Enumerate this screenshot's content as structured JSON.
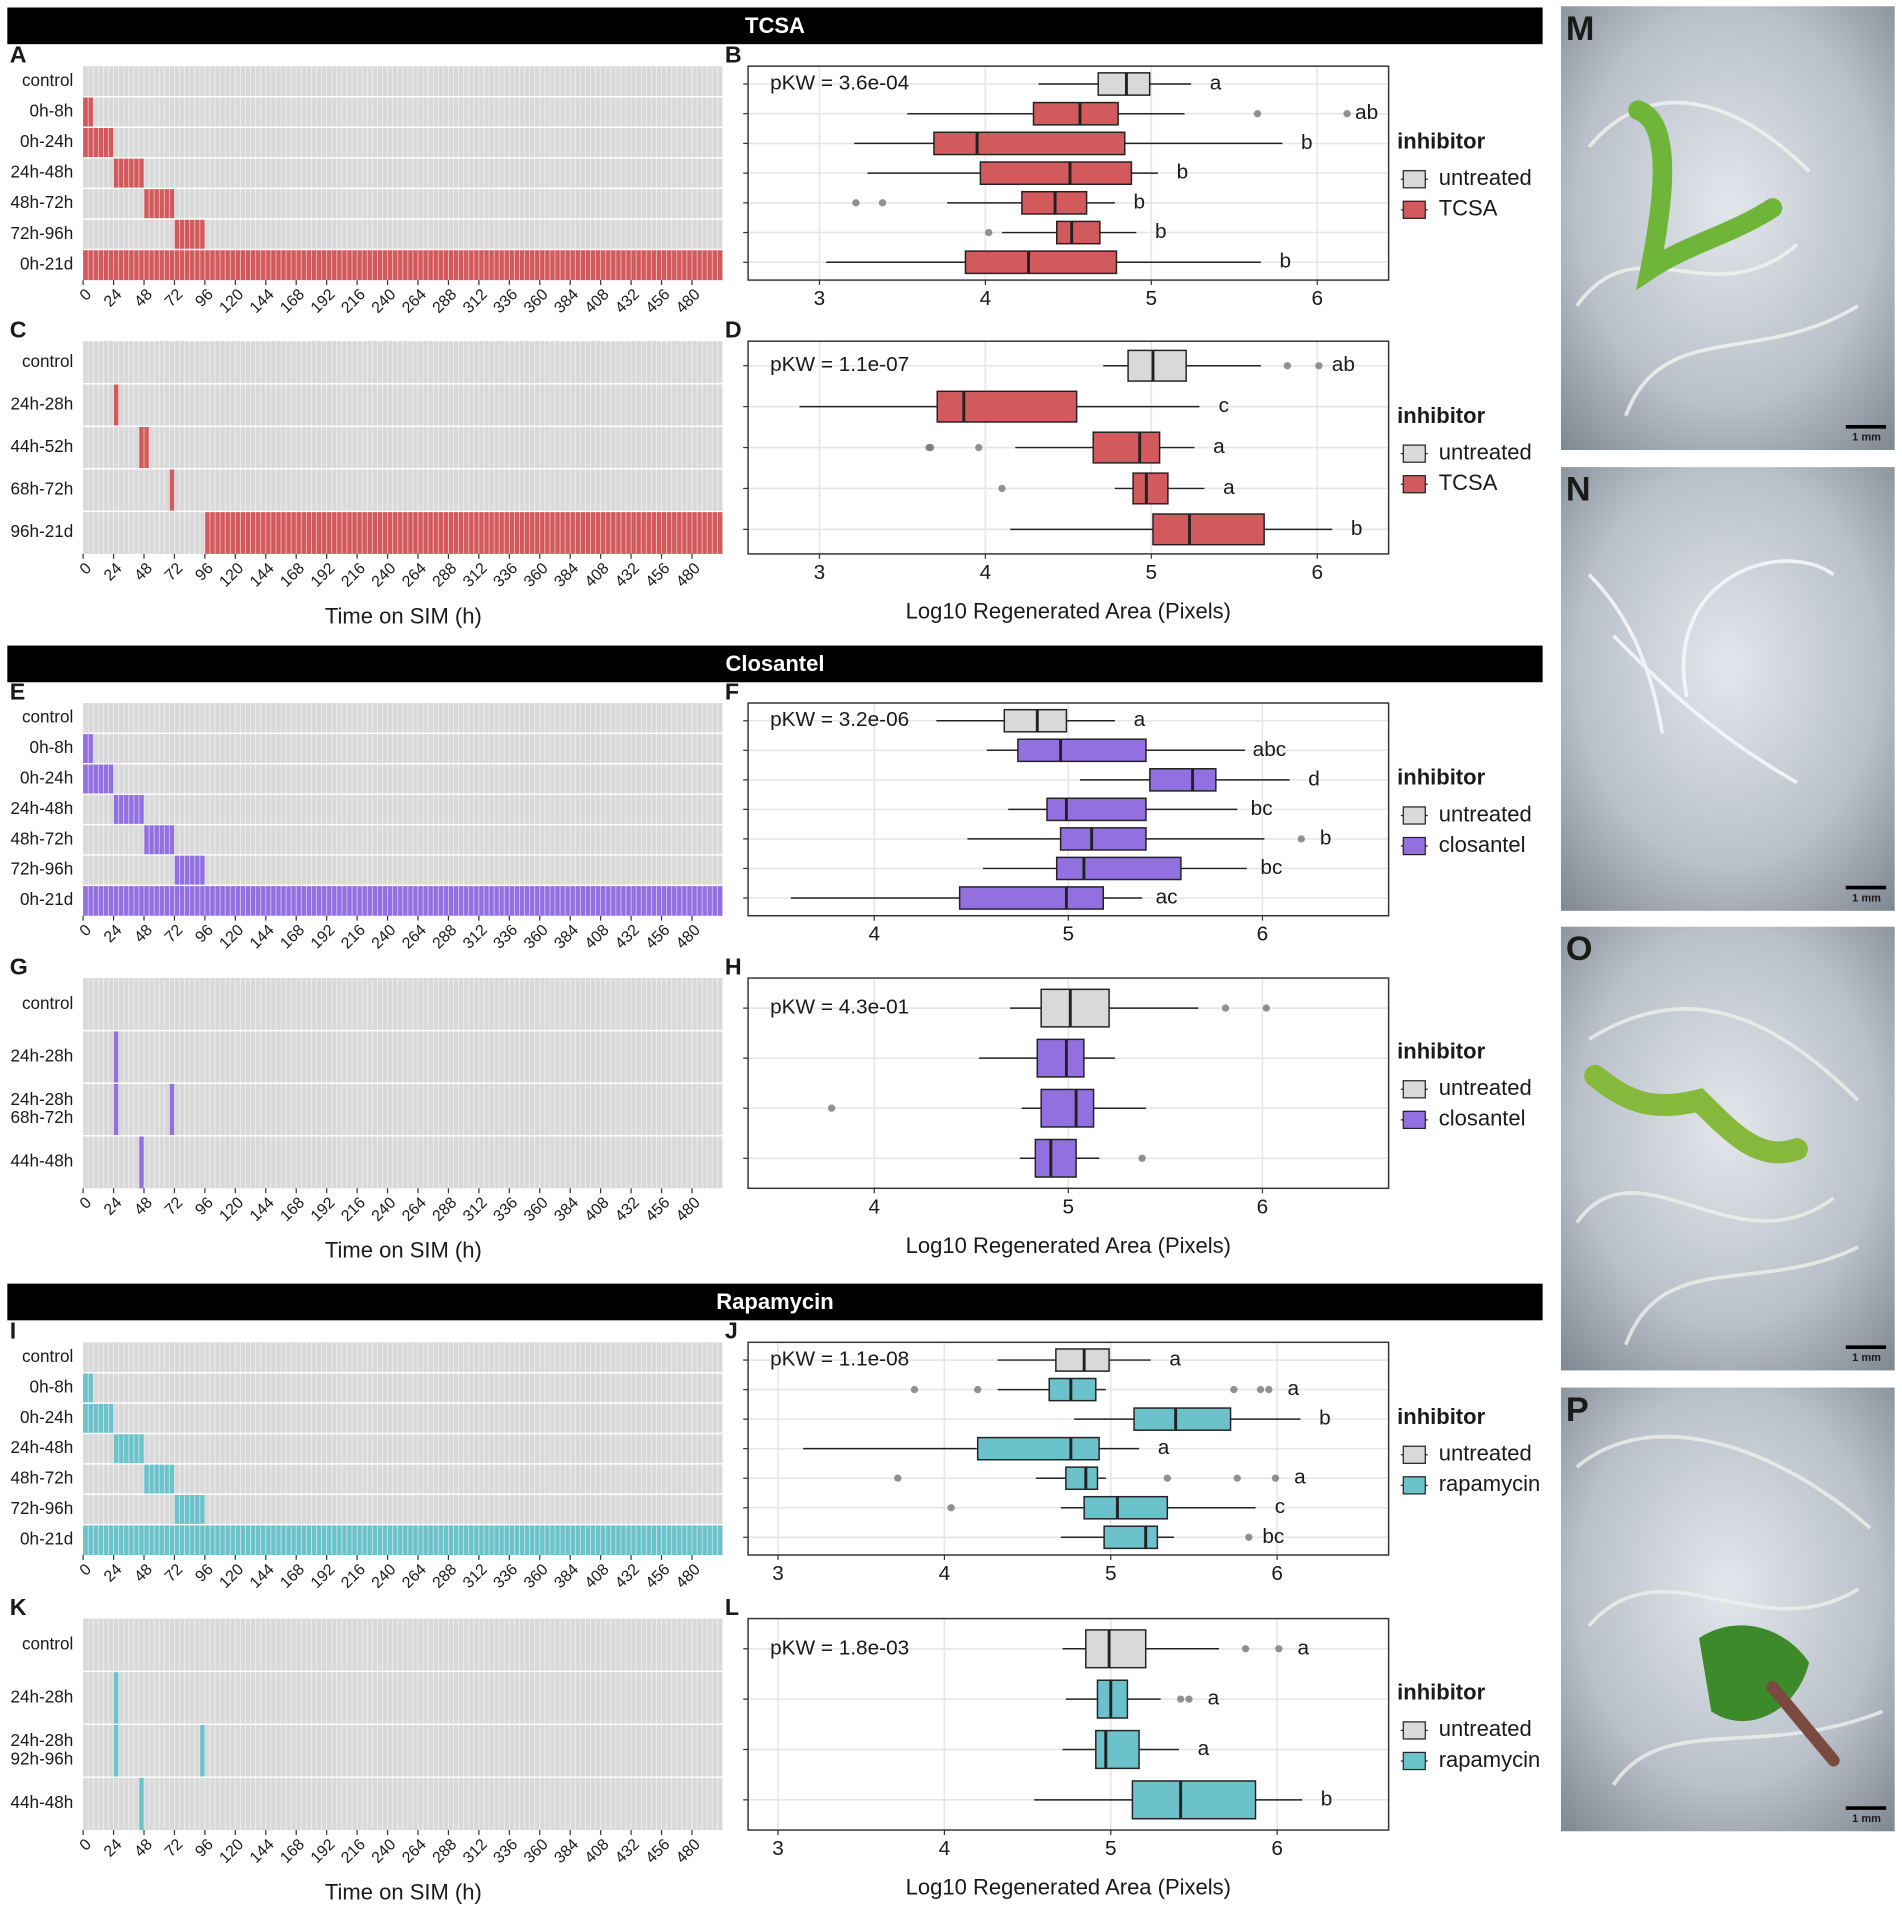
{
  "sections": [
    "TCSA",
    "Closantel",
    "Rapamycin"
  ],
  "chart_data": [
    {
      "type": "timeline",
      "panel": "A",
      "color": "#d25a5c",
      "xlim": [
        0,
        504
      ],
      "xticks": [
        0,
        24,
        48,
        72,
        96,
        120,
        144,
        168,
        192,
        216,
        240,
        264,
        288,
        312,
        336,
        360,
        384,
        408,
        432,
        456,
        480
      ],
      "categories": [
        "control",
        "0h-8h",
        "0h-24h",
        "24h-48h",
        "48h-72h",
        "72h-96h",
        "0h-21d"
      ],
      "intervals": [
        [],
        [
          [
            0,
            8
          ]
        ],
        [
          [
            0,
            24
          ]
        ],
        [
          [
            24,
            48
          ]
        ],
        [
          [
            48,
            72
          ]
        ],
        [
          [
            72,
            96
          ]
        ],
        [
          [
            0,
            504
          ]
        ]
      ]
    },
    {
      "type": "box",
      "panel": "B",
      "annotation": "pKW = 3.6e-04",
      "legend_title": "inhibitor",
      "series": [
        {
          "name": "untreated",
          "color": "#d9d9d9"
        },
        {
          "name": "TCSA",
          "color": "#d25a5c"
        }
      ],
      "xlim": [
        2.57,
        6.43
      ],
      "xticks": [
        3,
        4,
        5,
        6
      ],
      "grid": true,
      "boxes": [
        {
          "min": 4.32,
          "q1": 4.68,
          "median": 4.85,
          "q3": 4.99,
          "max": 5.24,
          "outliers": [],
          "letter": "a"
        },
        {
          "min": 3.53,
          "q1": 4.29,
          "median": 4.57,
          "q3": 4.8,
          "max": 5.2,
          "outliers": [
            5.64,
            6.18
          ],
          "letter": "ab"
        },
        {
          "min": 3.21,
          "q1": 3.69,
          "median": 3.95,
          "q3": 4.84,
          "max": 5.79,
          "outliers": [],
          "letter": "b"
        },
        {
          "min": 3.29,
          "q1": 3.97,
          "median": 4.51,
          "q3": 4.88,
          "max": 5.04,
          "outliers": [],
          "letter": "b"
        },
        {
          "min": 3.77,
          "q1": 4.22,
          "median": 4.42,
          "q3": 4.61,
          "max": 4.78,
          "outliers": [
            3.22,
            3.38
          ],
          "letter": "b"
        },
        {
          "min": 4.1,
          "q1": 4.43,
          "median": 4.52,
          "q3": 4.69,
          "max": 4.91,
          "outliers": [
            4.02
          ],
          "letter": "b"
        },
        {
          "min": 3.04,
          "q1": 3.88,
          "median": 4.26,
          "q3": 4.79,
          "max": 5.66,
          "outliers": [],
          "letter": "b"
        }
      ]
    },
    {
      "type": "timeline",
      "panel": "C",
      "color": "#d25a5c",
      "xlim": [
        0,
        504
      ],
      "xlabel": "Time on SIM (h)",
      "xticks": [
        0,
        24,
        48,
        72,
        96,
        120,
        144,
        168,
        192,
        216,
        240,
        264,
        288,
        312,
        336,
        360,
        384,
        408,
        432,
        456,
        480
      ],
      "categories": [
        "control",
        "24h-28h",
        "44h-52h",
        "68h-72h",
        "96h-21d"
      ],
      "intervals": [
        [],
        [
          [
            24,
            28
          ]
        ],
        [
          [
            44,
            52
          ]
        ],
        [
          [
            68,
            72
          ]
        ],
        [
          [
            96,
            504
          ]
        ]
      ]
    },
    {
      "type": "box",
      "panel": "D",
      "annotation": "pKW = 1.1e-07",
      "legend_title": "inhibitor",
      "xlabel": "Log10 Regenerated Area (Pixels)",
      "series": [
        {
          "name": "untreated",
          "color": "#d9d9d9"
        },
        {
          "name": "TCSA",
          "color": "#d25a5c"
        }
      ],
      "xlim": [
        2.57,
        6.43
      ],
      "xticks": [
        3,
        4,
        5,
        6
      ],
      "grid": true,
      "boxes": [
        {
          "min": 4.71,
          "q1": 4.86,
          "median": 5.01,
          "q3": 5.21,
          "max": 5.66,
          "outliers": [
            5.82,
            6.01
          ],
          "letter": "ab"
        },
        {
          "min": 2.88,
          "q1": 3.71,
          "median": 3.87,
          "q3": 4.55,
          "max": 5.29,
          "outliers": [],
          "letter": "c"
        },
        {
          "min": 4.18,
          "q1": 4.65,
          "median": 4.93,
          "q3": 5.05,
          "max": 5.26,
          "outliers": [
            3.66,
            3.67,
            3.96
          ],
          "letter": "a"
        },
        {
          "min": 4.78,
          "q1": 4.89,
          "median": 4.97,
          "q3": 5.1,
          "max": 5.32,
          "outliers": [
            4.1
          ],
          "letter": "a"
        },
        {
          "min": 4.15,
          "q1": 5.01,
          "median": 5.23,
          "q3": 5.68,
          "max": 6.09,
          "outliers": [],
          "letter": "b"
        }
      ]
    },
    {
      "type": "timeline",
      "panel": "E",
      "color": "#9370e0",
      "xlim": [
        0,
        504
      ],
      "xticks": [
        0,
        24,
        48,
        72,
        96,
        120,
        144,
        168,
        192,
        216,
        240,
        264,
        288,
        312,
        336,
        360,
        384,
        408,
        432,
        456,
        480
      ],
      "categories": [
        "control",
        "0h-8h",
        "0h-24h",
        "24h-48h",
        "48h-72h",
        "72h-96h",
        "0h-21d"
      ],
      "intervals": [
        [],
        [
          [
            0,
            8
          ]
        ],
        [
          [
            0,
            24
          ]
        ],
        [
          [
            24,
            48
          ]
        ],
        [
          [
            48,
            72
          ]
        ],
        [
          [
            72,
            96
          ]
        ],
        [
          [
            0,
            504
          ]
        ]
      ]
    },
    {
      "type": "box",
      "panel": "F",
      "annotation": "pKW = 3.2e-06",
      "legend_title": "inhibitor",
      "series": [
        {
          "name": "untreated",
          "color": "#d9d9d9"
        },
        {
          "name": "closantel",
          "color": "#9370e0"
        }
      ],
      "xlim": [
        3.35,
        6.65
      ],
      "xticks": [
        4,
        5,
        6
      ],
      "grid": true,
      "boxes": [
        {
          "min": 4.32,
          "q1": 4.67,
          "median": 4.84,
          "q3": 4.99,
          "max": 5.24,
          "outliers": [],
          "letter": "a"
        },
        {
          "min": 4.58,
          "q1": 4.74,
          "median": 4.96,
          "q3": 5.4,
          "max": 5.91,
          "outliers": [],
          "letter": "abc"
        },
        {
          "min": 5.06,
          "q1": 5.42,
          "median": 5.64,
          "q3": 5.76,
          "max": 6.14,
          "outliers": [],
          "letter": "d"
        },
        {
          "min": 4.69,
          "q1": 4.89,
          "median": 4.99,
          "q3": 5.4,
          "max": 5.87,
          "outliers": [],
          "letter": "bc"
        },
        {
          "min": 4.48,
          "q1": 4.96,
          "median": 5.12,
          "q3": 5.4,
          "max": 6.01,
          "outliers": [
            6.2
          ],
          "letter": "b"
        },
        {
          "min": 4.56,
          "q1": 4.94,
          "median": 5.08,
          "q3": 5.58,
          "max": 5.92,
          "outliers": [],
          "letter": "bc"
        },
        {
          "min": 3.57,
          "q1": 4.44,
          "median": 4.99,
          "q3": 5.18,
          "max": 5.38,
          "outliers": [],
          "letter": "ac"
        }
      ]
    },
    {
      "type": "timeline",
      "panel": "G",
      "color": "#9370e0",
      "xlim": [
        0,
        504
      ],
      "xlabel": "Time on SIM (h)",
      "xticks": [
        0,
        24,
        48,
        72,
        96,
        120,
        144,
        168,
        192,
        216,
        240,
        264,
        288,
        312,
        336,
        360,
        384,
        408,
        432,
        456,
        480
      ],
      "categories": [
        "control",
        "24h-28h",
        [
          "24h-28h",
          "68h-72h"
        ],
        "44h-48h"
      ],
      "intervals": [
        [],
        [
          [
            24,
            28
          ]
        ],
        [
          [
            24,
            28
          ],
          [
            68,
            72
          ]
        ],
        [
          [
            44,
            48
          ]
        ]
      ]
    },
    {
      "type": "box",
      "panel": "H",
      "annotation": "pKW = 4.3e-01",
      "legend_title": "inhibitor",
      "xlabel": "Log10 Regenerated Area (Pixels)",
      "series": [
        {
          "name": "untreated",
          "color": "#d9d9d9"
        },
        {
          "name": "closantel",
          "color": "#9370e0"
        }
      ],
      "xlim": [
        3.35,
        6.65
      ],
      "xticks": [
        4,
        5,
        6
      ],
      "grid": true,
      "boxes": [
        {
          "min": 4.7,
          "q1": 4.86,
          "median": 5.01,
          "q3": 5.21,
          "max": 5.67,
          "outliers": [
            5.81,
            6.02
          ]
        },
        {
          "min": 4.54,
          "q1": 4.84,
          "median": 4.99,
          "q3": 5.08,
          "max": 5.24,
          "outliers": []
        },
        {
          "min": 4.76,
          "q1": 4.86,
          "median": 5.04,
          "q3": 5.13,
          "max": 5.4,
          "outliers": [
            3.78
          ]
        },
        {
          "min": 4.75,
          "q1": 4.83,
          "median": 4.91,
          "q3": 5.04,
          "max": 5.16,
          "outliers": [
            5.38
          ]
        }
      ]
    },
    {
      "type": "timeline",
      "panel": "I",
      "color": "#6cc2ca",
      "xlim": [
        0,
        504
      ],
      "xticks": [
        0,
        24,
        48,
        72,
        96,
        120,
        144,
        168,
        192,
        216,
        240,
        264,
        288,
        312,
        336,
        360,
        384,
        408,
        432,
        456,
        480
      ],
      "categories": [
        "control",
        "0h-8h",
        "0h-24h",
        "24h-48h",
        "48h-72h",
        "72h-96h",
        "0h-21d"
      ],
      "intervals": [
        [],
        [
          [
            0,
            8
          ]
        ],
        [
          [
            0,
            24
          ]
        ],
        [
          [
            24,
            48
          ]
        ],
        [
          [
            48,
            72
          ]
        ],
        [
          [
            72,
            96
          ]
        ],
        [
          [
            0,
            504
          ]
        ]
      ]
    },
    {
      "type": "box",
      "panel": "J",
      "annotation": "pKW = 1.1e-08",
      "legend_title": "inhibitor",
      "series": [
        {
          "name": "untreated",
          "color": "#d9d9d9"
        },
        {
          "name": "rapamycin",
          "color": "#6cc2ca"
        }
      ],
      "xlim": [
        2.82,
        6.67
      ],
      "xticks": [
        3,
        4,
        5,
        6
      ],
      "grid": true,
      "boxes": [
        {
          "min": 4.32,
          "q1": 4.67,
          "median": 4.84,
          "q3": 4.99,
          "max": 5.24,
          "outliers": [],
          "letter": "a"
        },
        {
          "min": 4.32,
          "q1": 4.63,
          "median": 4.76,
          "q3": 4.91,
          "max": 4.97,
          "outliers": [
            3.82,
            4.2,
            5.74,
            5.9,
            5.95
          ],
          "letter": "a"
        },
        {
          "min": 4.78,
          "q1": 5.14,
          "median": 5.39,
          "q3": 5.72,
          "max": 6.14,
          "outliers": [],
          "letter": "b"
        },
        {
          "min": 3.15,
          "q1": 4.2,
          "median": 4.76,
          "q3": 4.93,
          "max": 5.17,
          "outliers": [],
          "letter": "a"
        },
        {
          "min": 4.55,
          "q1": 4.73,
          "median": 4.85,
          "q3": 4.92,
          "max": 4.97,
          "outliers": [
            3.72,
            5.34,
            5.76,
            5.99
          ],
          "letter": "a"
        },
        {
          "min": 4.7,
          "q1": 4.84,
          "median": 5.04,
          "q3": 5.34,
          "max": 5.87,
          "outliers": [
            4.04
          ],
          "letter": "c"
        },
        {
          "min": 4.7,
          "q1": 4.96,
          "median": 5.21,
          "q3": 5.28,
          "max": 5.38,
          "outliers": [
            5.83
          ],
          "letter": "bc"
        }
      ]
    },
    {
      "type": "timeline",
      "panel": "K",
      "color": "#6cc2ca",
      "xlim": [
        0,
        504
      ],
      "xlabel": "Time on SIM (h)",
      "xticks": [
        0,
        24,
        48,
        72,
        96,
        120,
        144,
        168,
        192,
        216,
        240,
        264,
        288,
        312,
        336,
        360,
        384,
        408,
        432,
        456,
        480
      ],
      "categories": [
        "control",
        "24h-28h",
        [
          "24h-28h",
          "92h-96h"
        ],
        "44h-48h"
      ],
      "intervals": [
        [],
        [
          [
            24,
            28
          ]
        ],
        [
          [
            24,
            28
          ],
          [
            92,
            96
          ]
        ],
        [
          [
            44,
            48
          ]
        ]
      ]
    },
    {
      "type": "box",
      "panel": "L",
      "annotation": "pKW = 1.8e-03",
      "legend_title": "inhibitor",
      "xlabel": "Log10 Regenerated Area (Pixels)",
      "series": [
        {
          "name": "untreated",
          "color": "#d9d9d9"
        },
        {
          "name": "rapamycin",
          "color": "#6cc2ca"
        }
      ],
      "xlim": [
        2.82,
        6.67
      ],
      "xticks": [
        3,
        4,
        5,
        6
      ],
      "grid": true,
      "boxes": [
        {
          "min": 4.71,
          "q1": 4.85,
          "median": 4.99,
          "q3": 5.21,
          "max": 5.65,
          "outliers": [
            5.81,
            6.01
          ],
          "letter": "a"
        },
        {
          "min": 4.73,
          "q1": 4.92,
          "median": 5.0,
          "q3": 5.1,
          "max": 5.3,
          "outliers": [
            5.42,
            5.47
          ],
          "letter": "a"
        },
        {
          "min": 4.71,
          "q1": 4.91,
          "median": 4.97,
          "q3": 5.17,
          "max": 5.41,
          "outliers": [],
          "letter": "a"
        },
        {
          "min": 4.54,
          "q1": 5.13,
          "median": 5.42,
          "q3": 5.87,
          "max": 6.15,
          "outliers": [],
          "letter": "b"
        }
      ]
    }
  ],
  "images": [
    {
      "label": "M",
      "scale_bar": "1 mm"
    },
    {
      "label": "N",
      "scale_bar": "1 mm"
    },
    {
      "label": "O",
      "scale_bar": "1 mm"
    },
    {
      "label": "P",
      "scale_bar": "1 mm"
    }
  ]
}
